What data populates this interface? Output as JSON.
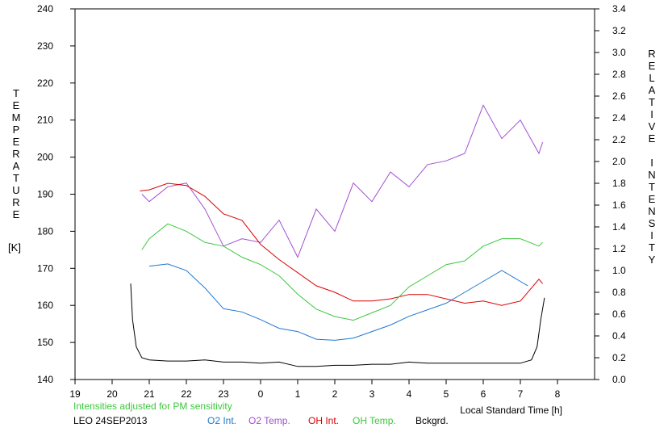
{
  "chart_data": {
    "type": "line",
    "xlabel": "Local Standard Time [h]",
    "x_ticks": [
      "19",
      "20",
      "21",
      "22",
      "23",
      "0",
      "1",
      "2",
      "3",
      "4",
      "5",
      "6",
      "7",
      "8"
    ],
    "xlim_hours": [
      19,
      33
    ],
    "left_axis": {
      "label_letters": [
        "T",
        "E",
        "M",
        "P",
        "E",
        "R",
        "A",
        "T",
        "U",
        "R",
        "E"
      ],
      "unit": "[K]",
      "ylim": [
        140,
        240
      ],
      "ticks": [
        "140",
        "150",
        "160",
        "170",
        "180",
        "190",
        "200",
        "210",
        "220",
        "230",
        "240"
      ]
    },
    "right_axis": {
      "label_letters": [
        "R",
        "E",
        "L",
        "A",
        "T",
        "I",
        "V",
        "E",
        "",
        "I",
        "N",
        "T",
        "E",
        "N",
        "S",
        "I",
        "T",
        "Y"
      ],
      "ylim": [
        0,
        3.4
      ],
      "ticks": [
        "0.0",
        "0.2",
        "0.4",
        "0.6",
        "0.8",
        "1.0",
        "1.2",
        "1.4",
        "1.6",
        "1.8",
        "2.0",
        "2.2",
        "2.4",
        "2.6",
        "2.8",
        "3.0",
        "3.2",
        "3.4"
      ]
    },
    "notes": {
      "adjusted": "Intensities adjusted for PM sensitivity",
      "station": "LEO 24SEP2013"
    },
    "series": [
      {
        "name": "O2 Int.",
        "axis": "right",
        "color": "#1e78d2",
        "x": [
          21.0,
          21.5,
          22.0,
          22.5,
          23.0,
          23.5,
          24.0,
          24.5,
          25.0,
          25.5,
          26.0,
          26.5,
          27.0,
          27.5,
          28.0,
          28.5,
          29.0,
          29.5,
          30.0,
          30.5,
          31.0,
          31.2
        ],
        "y": [
          1.04,
          1.06,
          1.0,
          0.84,
          0.65,
          0.62,
          0.55,
          0.47,
          0.44,
          0.37,
          0.36,
          0.38,
          0.44,
          0.5,
          0.58,
          0.64,
          0.7,
          0.8,
          0.9,
          1.0,
          0.9,
          0.86
        ]
      },
      {
        "name": "O2 Temp.",
        "axis": "left",
        "color": "#a050d2",
        "x": [
          20.8,
          21.0,
          21.5,
          22.0,
          22.5,
          23.0,
          23.5,
          24.0,
          24.5,
          25.0,
          25.5,
          26.0,
          26.5,
          27.0,
          27.5,
          28.0,
          28.5,
          29.0,
          29.5,
          30.0,
          30.5,
          31.0,
          31.5,
          31.6
        ],
        "y": [
          190,
          188,
          192,
          193,
          186,
          176,
          178,
          177,
          183,
          173,
          186,
          180,
          193,
          188,
          196,
          192,
          198,
          199,
          201,
          214,
          205,
          210,
          201,
          204
        ]
      },
      {
        "name": "OH Int.",
        "axis": "right",
        "color": "#dc0000",
        "x": [
          20.75,
          21.0,
          21.5,
          22.0,
          22.5,
          23.0,
          23.5,
          24.0,
          24.5,
          25.0,
          25.5,
          26.0,
          26.5,
          27.0,
          27.5,
          28.0,
          28.5,
          29.0,
          29.5,
          30.0,
          30.5,
          31.0,
          31.5,
          31.6
        ],
        "y": [
          1.73,
          1.74,
          1.8,
          1.78,
          1.68,
          1.52,
          1.46,
          1.24,
          1.1,
          0.98,
          0.86,
          0.8,
          0.72,
          0.72,
          0.74,
          0.78,
          0.78,
          0.74,
          0.7,
          0.72,
          0.68,
          0.72,
          0.92,
          0.88
        ]
      },
      {
        "name": "OH Temp.",
        "axis": "left",
        "color": "#3cc83c",
        "x": [
          20.8,
          21.0,
          21.5,
          22.0,
          22.5,
          23.0,
          23.5,
          24.0,
          24.5,
          25.0,
          25.5,
          26.0,
          26.5,
          27.0,
          27.5,
          28.0,
          28.5,
          29.0,
          29.5,
          30.0,
          30.5,
          31.0,
          31.5,
          31.6
        ],
        "y": [
          175,
          178,
          182,
          180,
          177,
          176,
          173,
          171,
          168,
          163,
          159,
          157,
          156,
          158,
          160,
          165,
          168,
          171,
          172,
          176,
          178,
          178,
          176,
          177
        ]
      },
      {
        "name": "Bckgrd.",
        "axis": "right",
        "color": "#000000",
        "x": [
          20.5,
          20.55,
          20.65,
          20.8,
          21.0,
          21.5,
          22.0,
          22.5,
          23.0,
          23.5,
          24.0,
          24.5,
          25.0,
          25.5,
          26.0,
          26.5,
          27.0,
          27.5,
          28.0,
          28.5,
          29.0,
          29.5,
          30.0,
          30.5,
          31.0,
          31.3,
          31.45,
          31.55,
          31.65
        ],
        "y": [
          0.88,
          0.55,
          0.3,
          0.2,
          0.18,
          0.17,
          0.17,
          0.18,
          0.16,
          0.16,
          0.15,
          0.16,
          0.12,
          0.12,
          0.13,
          0.13,
          0.14,
          0.14,
          0.16,
          0.15,
          0.15,
          0.15,
          0.15,
          0.15,
          0.15,
          0.18,
          0.3,
          0.55,
          0.75
        ]
      }
    ]
  }
}
